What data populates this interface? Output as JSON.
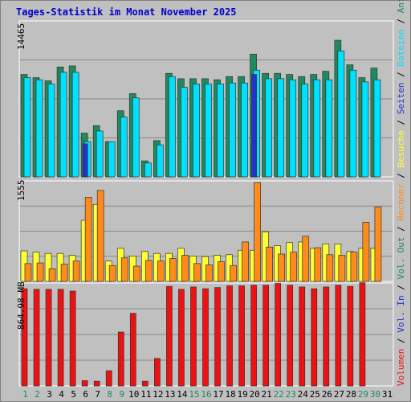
{
  "chart_data": {
    "type": "bar",
    "title": "Tages-Statistik im Monat November 2025",
    "days": [
      "1",
      "2",
      "3",
      "4",
      "5",
      "6",
      "7",
      "8",
      "9",
      "10",
      "11",
      "12",
      "13",
      "14",
      "15",
      "16",
      "17",
      "18",
      "19",
      "20",
      "21",
      "22",
      "23",
      "24",
      "25",
      "26",
      "27",
      "28",
      "29",
      "30",
      "31"
    ],
    "weekend_days": [
      "1",
      "2",
      "8",
      "9",
      "15",
      "16",
      "22",
      "23",
      "29",
      "30"
    ],
    "requests_panel": {
      "max_label": "14465",
      "ylim": [
        0,
        14465
      ],
      "series": [
        {
          "name": "Anfragen",
          "values": [
            9600,
            9300,
            9000,
            10300,
            10400,
            4100,
            4800,
            3300,
            6200,
            7800,
            1500,
            3400,
            9700,
            9200,
            9200,
            9200,
            9100,
            9400,
            9400,
            11500,
            9700,
            9700,
            9600,
            9400,
            9600,
            9900,
            12800,
            10500,
            9300,
            10200,
            0
          ]
        },
        {
          "name": "Dateien",
          "values": [
            9300,
            9100,
            8700,
            9800,
            9800,
            3300,
            4300,
            3300,
            5600,
            7400,
            1300,
            3000,
            9400,
            8400,
            8700,
            8700,
            8700,
            8800,
            8800,
            10000,
            9200,
            9200,
            9100,
            8700,
            9100,
            9100,
            11800,
            10000,
            8900,
            9100,
            0
          ]
        },
        {
          "name": "Seiten",
          "values": [
            0,
            0,
            0,
            0,
            0,
            3100,
            0,
            0,
            0,
            0,
            0,
            0,
            0,
            0,
            0,
            0,
            0,
            0,
            0,
            9600,
            0,
            0,
            0,
            0,
            0,
            0,
            0,
            0,
            0,
            0,
            0
          ]
        }
      ]
    },
    "visits_panel": {
      "max_label": "1555",
      "ylim": [
        0,
        1555
      ],
      "series": [
        {
          "name": "Besuche",
          "values": [
            480,
            460,
            440,
            440,
            410,
            960,
            1210,
            320,
            520,
            400,
            470,
            440,
            440,
            520,
            400,
            390,
            410,
            420,
            490,
            490,
            780,
            560,
            610,
            620,
            520,
            590,
            590,
            470,
            520,
            520,
            0
          ]
        },
        {
          "name": "Rechner",
          "values": [
            280,
            290,
            200,
            270,
            320,
            1320,
            1430,
            250,
            370,
            240,
            330,
            320,
            360,
            410,
            280,
            260,
            310,
            250,
            620,
            1555,
            540,
            430,
            460,
            710,
            530,
            420,
            410,
            460,
            930,
            1170,
            0
          ]
        }
      ]
    },
    "volume_panel": {
      "max_label": "864.98 MB",
      "ylim": [
        0,
        864.98
      ],
      "series": [
        {
          "name": "Volumen",
          "values": [
            830,
            825,
            825,
            825,
            810,
            45,
            40,
            130,
            460,
            620,
            40,
            235,
            850,
            825,
            845,
            830,
            840,
            855,
            855,
            860,
            860,
            875,
            860,
            845,
            830,
            845,
            860,
            850,
            880,
            0,
            0
          ]
        }
      ]
    },
    "right_legend": [
      "Anfragen",
      "Dateien",
      "Seiten",
      "Besuche",
      "Rechner",
      "Vol. Out",
      "Vol. In",
      "Volumen"
    ]
  },
  "colors": {
    "anfragen": "#1f8a5c",
    "dateien": "#00e0ff",
    "seiten": "#2233cc",
    "besuche": "#ffff33",
    "rechner": "#ff8c1a",
    "volumen": "#ee1111",
    "vol_in": "#2233cc",
    "vol_out": "#1f8a5c",
    "title": "#0000cc",
    "weekend": "#1f8a5c"
  }
}
